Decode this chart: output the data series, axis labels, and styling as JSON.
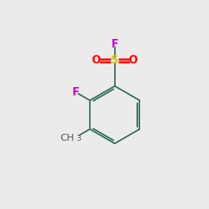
{
  "background_color": "#ebebeb",
  "figsize": [
    3.0,
    3.0
  ],
  "dpi": 100,
  "ring_color": "#2d6b5a",
  "bond_color": "#2d6b5a",
  "S_color": "#cccc00",
  "O_color": "#ff0000",
  "F_color": "#cc00cc",
  "CH3_color": "#2d6b5a",
  "methyl_color": "#555555",
  "label_S": "S",
  "label_O_left": "O",
  "label_O_right": "O",
  "label_F_top": "F",
  "label_F_ring": "F",
  "font_size_atoms": 11,
  "font_size_ch3": 10,
  "ring_lw": 1.5
}
